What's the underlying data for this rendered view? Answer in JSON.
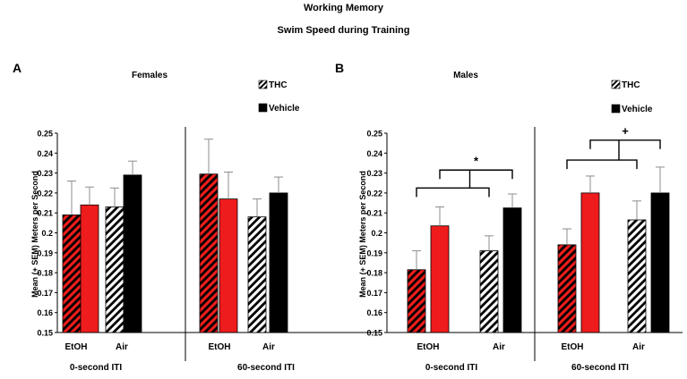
{
  "figure": {
    "title": "Working Memory",
    "subtitle": "Swim Speed during Training"
  },
  "colors": {
    "etoh": "#ee1c1c",
    "air": "#000000",
    "bar_edge": "#000000",
    "error": "#8c8c8c",
    "bracket": "#000000"
  },
  "chart_data": [
    {
      "type": "bar",
      "panel": "A",
      "title": "Females",
      "ylabel": "Mean (+ SEM) Meters per Second",
      "ylim": [
        0.15,
        0.25
      ],
      "yticks": [
        "0.15",
        "0.16",
        "0.17",
        "0.18",
        "0.19",
        "0.2",
        "0.21",
        "0.22",
        "0.23",
        "0.24",
        "0.25"
      ],
      "legend": [
        {
          "label": "THC",
          "pattern": "striped"
        },
        {
          "label": "Vehicle",
          "pattern": "solid"
        }
      ],
      "groups": [
        {
          "label": "0-second ITI",
          "categories": [
            "EtOH",
            "Air"
          ]
        },
        {
          "label": "60-second ITI",
          "categories": [
            "EtOH",
            "Air"
          ]
        }
      ],
      "bars": [
        {
          "group": "0-second ITI",
          "category": "EtOH",
          "treatment": "THC",
          "value": 0.209,
          "sem": 0.017
        },
        {
          "group": "0-second ITI",
          "category": "EtOH",
          "treatment": "Vehicle",
          "value": 0.214,
          "sem": 0.009
        },
        {
          "group": "0-second ITI",
          "category": "Air",
          "treatment": "THC",
          "value": 0.213,
          "sem": 0.0095
        },
        {
          "group": "0-second ITI",
          "category": "Air",
          "treatment": "Vehicle",
          "value": 0.229,
          "sem": 0.007
        },
        {
          "group": "60-second ITI",
          "category": "EtOH",
          "treatment": "THC",
          "value": 0.2295,
          "sem": 0.0175
        },
        {
          "group": "60-second ITI",
          "category": "EtOH",
          "treatment": "Vehicle",
          "value": 0.217,
          "sem": 0.0135
        },
        {
          "group": "60-second ITI",
          "category": "Air",
          "treatment": "THC",
          "value": 0.208,
          "sem": 0.009
        },
        {
          "group": "60-second ITI",
          "category": "Air",
          "treatment": "Vehicle",
          "value": 0.22,
          "sem": 0.008
        }
      ],
      "annotations": []
    },
    {
      "type": "bar",
      "panel": "B",
      "title": "Males",
      "ylabel": "Mean (+ SEM) Meters per Second",
      "ylim": [
        0.15,
        0.25
      ],
      "yticks": [
        "0.15",
        "0.16",
        "0.17",
        "0.18",
        "0.19",
        "0.2",
        "0.21",
        "0.22",
        "0.23",
        "0.24",
        "0.25"
      ],
      "legend": [
        {
          "label": "THC",
          "pattern": "striped"
        },
        {
          "label": "Vehicle",
          "pattern": "solid"
        }
      ],
      "groups": [
        {
          "label": "0-second ITI",
          "categories": [
            "EtOH",
            "Air"
          ]
        },
        {
          "label": "60-second ITI",
          "categories": [
            "EtOH",
            "Air"
          ]
        }
      ],
      "bars": [
        {
          "group": "0-second ITI",
          "category": "EtOH",
          "treatment": "THC",
          "value": 0.1815,
          "sem": 0.0095
        },
        {
          "group": "0-second ITI",
          "category": "EtOH",
          "treatment": "Vehicle",
          "value": 0.2035,
          "sem": 0.0095
        },
        {
          "group": "0-second ITI",
          "category": "Air",
          "treatment": "THC",
          "value": 0.191,
          "sem": 0.0075
        },
        {
          "group": "0-second ITI",
          "category": "Air",
          "treatment": "Vehicle",
          "value": 0.2125,
          "sem": 0.007
        },
        {
          "group": "60-second ITI",
          "category": "EtOH",
          "treatment": "THC",
          "value": 0.194,
          "sem": 0.008
        },
        {
          "group": "60-second ITI",
          "category": "EtOH",
          "treatment": "Vehicle",
          "value": 0.22,
          "sem": 0.0085
        },
        {
          "group": "60-second ITI",
          "category": "Air",
          "treatment": "THC",
          "value": 0.2065,
          "sem": 0.0095
        },
        {
          "group": "60-second ITI",
          "category": "Air",
          "treatment": "Vehicle",
          "value": 0.22,
          "sem": 0.013
        }
      ],
      "annotations": [
        {
          "label": "*",
          "group": "0-second ITI",
          "compares": [
            "EtOH",
            "Air"
          ],
          "upper_level": 0.2315,
          "lower_level": 0.2225,
          "hub_level": 0.2255
        },
        {
          "label": "+",
          "group": "60-second ITI",
          "compares": [
            "EtOH",
            "Air"
          ],
          "upper_level": 0.2465,
          "lower_level": 0.2365,
          "hub_level": 0.2395
        }
      ]
    }
  ]
}
